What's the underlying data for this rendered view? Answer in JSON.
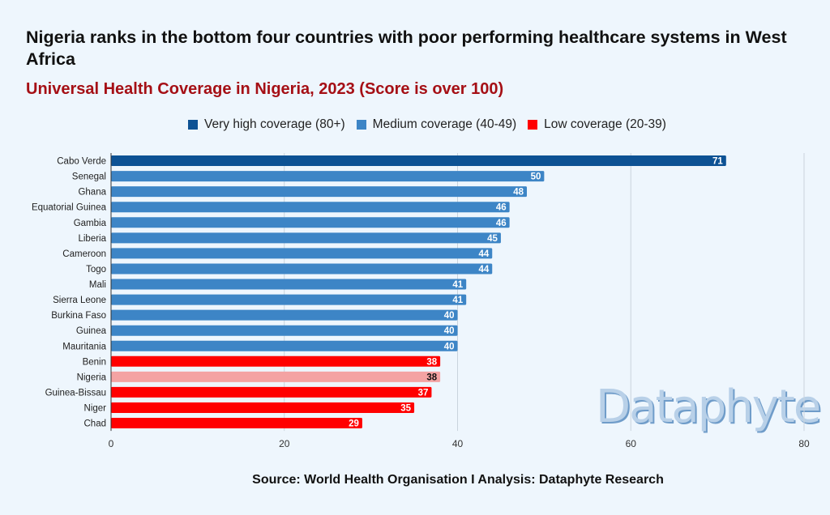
{
  "title": "Nigeria ranks in the bottom four countries with poor performing healthcare systems in West Africa",
  "subtitle": "Universal Health Coverage in Nigeria, 2023 (Score is over 100)",
  "legend": [
    {
      "label": "Very high coverage (80+)",
      "color": "#0d5294"
    },
    {
      "label": "Medium coverage (40-49)",
      "color": "#3d85c6"
    },
    {
      "label": "Low coverage (20-39)",
      "color": "#ff0000"
    }
  ],
  "source": "Source: World Health Organisation I Analysis: Dataphyte Research",
  "watermark": "Dataphyte",
  "chart_data": {
    "type": "bar",
    "orientation": "horizontal",
    "categories": [
      "Cabo Verde",
      "Senegal",
      "Ghana",
      "Equatorial Guinea",
      "Gambia",
      "Liberia",
      "Cameroon",
      "Togo",
      "Mali",
      "Sierra Leone",
      "Burkina Faso",
      "Guinea",
      "Mauritania",
      "Benin",
      "Nigeria",
      "Guinea-Bissau",
      "Niger",
      "Chad"
    ],
    "values": [
      71,
      50,
      48,
      46,
      46,
      45,
      44,
      44,
      41,
      41,
      40,
      40,
      40,
      38,
      38,
      37,
      35,
      29
    ],
    "colors": [
      "#0d5294",
      "#3d85c6",
      "#3d85c6",
      "#3d85c6",
      "#3d85c6",
      "#3d85c6",
      "#3d85c6",
      "#3d85c6",
      "#3d85c6",
      "#3d85c6",
      "#3d85c6",
      "#3d85c6",
      "#3d85c6",
      "#ff0000",
      "#f4a3a3",
      "#ff0000",
      "#ff0000",
      "#ff0000"
    ],
    "xlim": [
      0,
      80
    ],
    "xticks": [
      0,
      20,
      40,
      60,
      80
    ],
    "grid": true,
    "legend_position": "top"
  }
}
